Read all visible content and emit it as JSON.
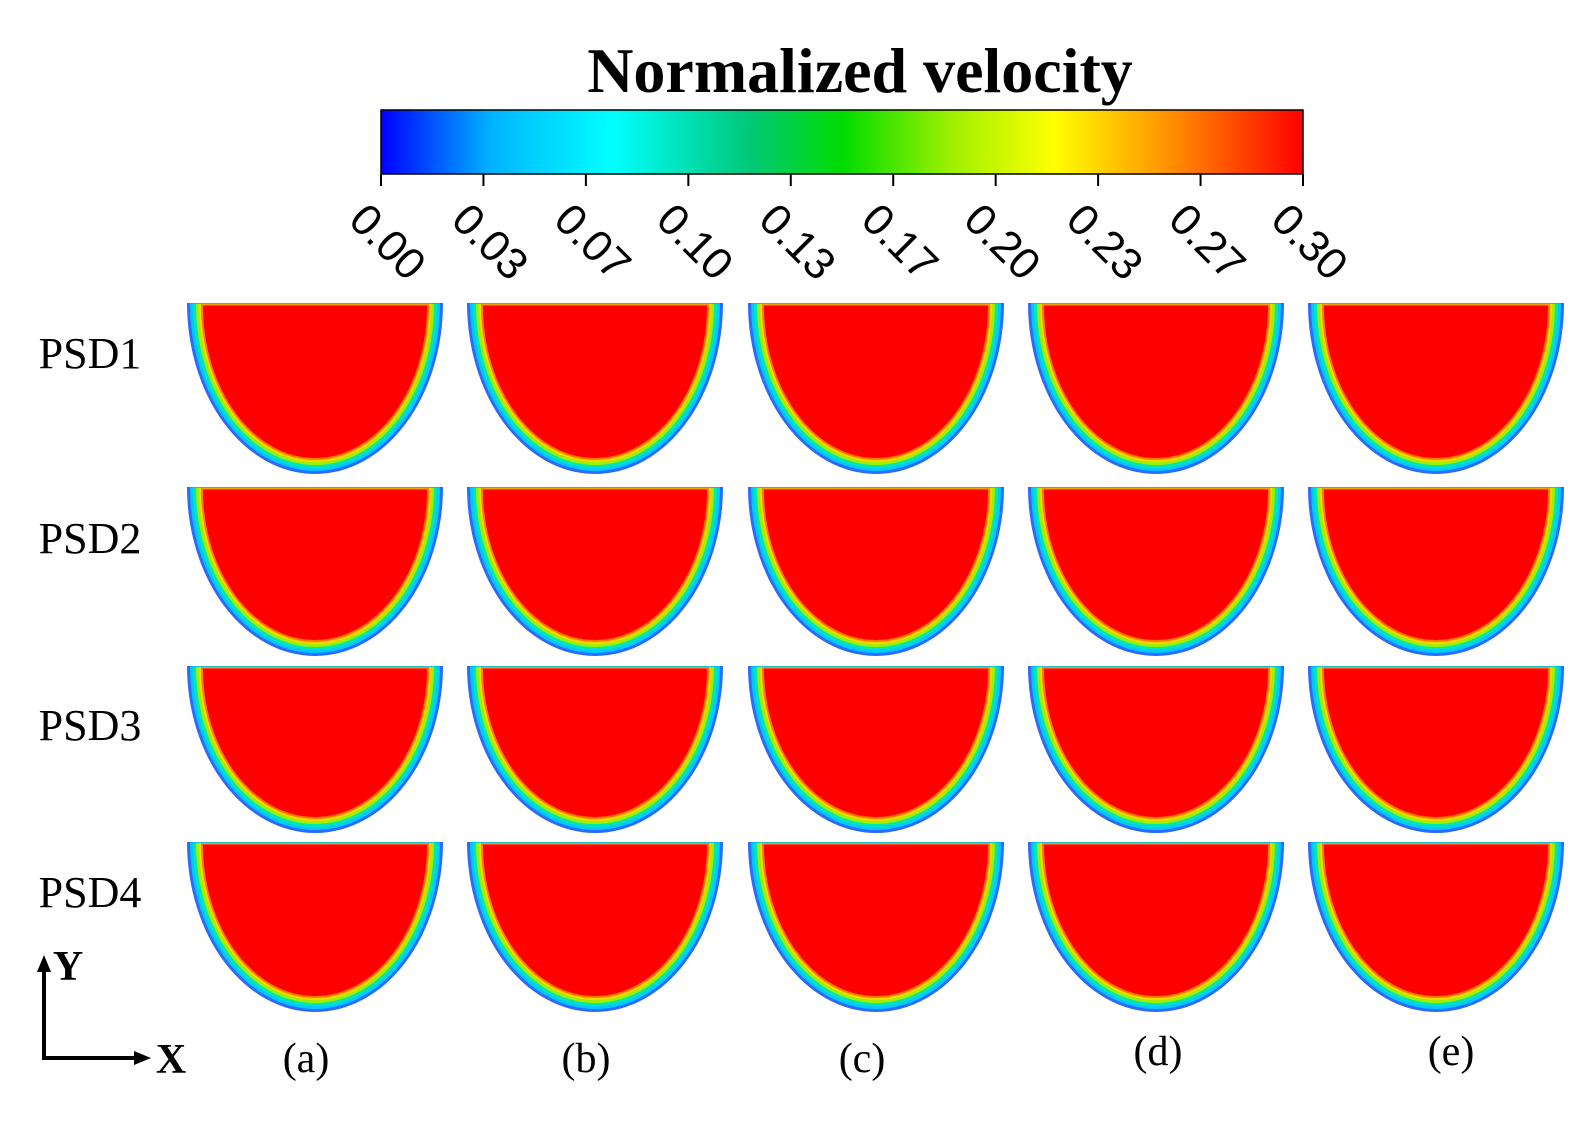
{
  "colorbar": {
    "title": "Normalized velocity",
    "ticks": [
      "0.00",
      "0.03",
      "0.07",
      "0.10",
      "0.13",
      "0.17",
      "0.20",
      "0.23",
      "0.27",
      "0.30"
    ],
    "colors": [
      "#0000ff",
      "#00b4ff",
      "#00ffff",
      "#00c878",
      "#00dc00",
      "#a0f000",
      "#ffff00",
      "#ff8c00",
      "#ff0000"
    ]
  },
  "rows": [
    "PSD1",
    "PSD2",
    "PSD3",
    "PSD4"
  ],
  "columns": [
    "(a)",
    "(b)",
    "(c)",
    "(d)",
    "(e)"
  ],
  "axes": {
    "y_label": "Y",
    "x_label": "X"
  },
  "core_color": "#ff0000"
}
